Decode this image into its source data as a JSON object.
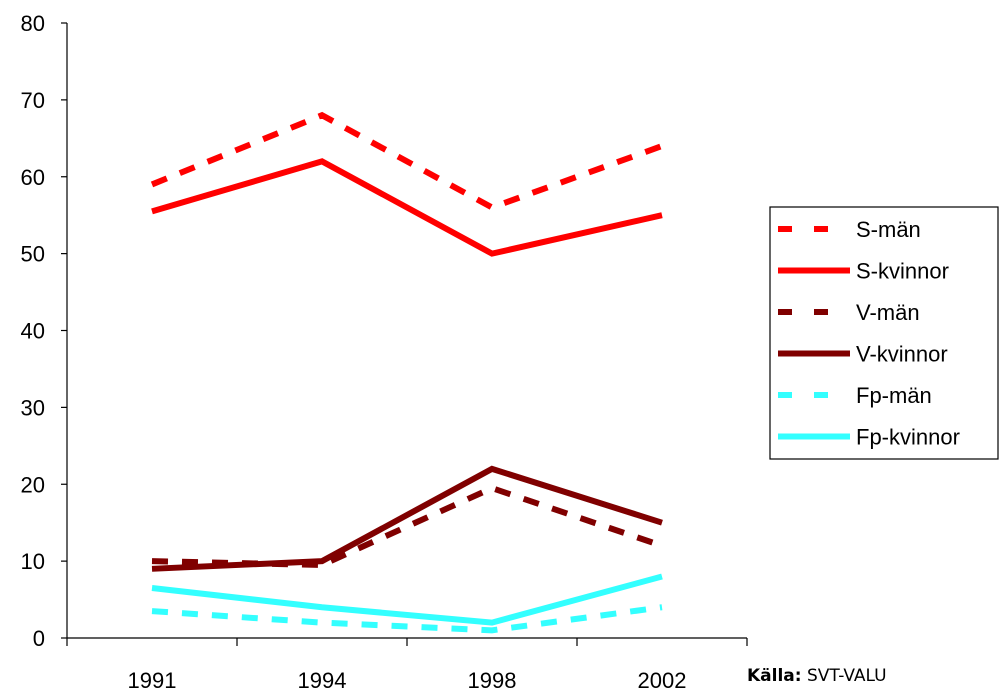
{
  "chart_data": {
    "type": "line",
    "categories": [
      "1991",
      "1994",
      "1998",
      "2002"
    ],
    "ylim": [
      0,
      80
    ],
    "yticks": [
      0,
      10,
      20,
      30,
      40,
      50,
      60,
      70,
      80
    ],
    "grid": false,
    "legend_position": "right",
    "series": [
      {
        "name": "S-män",
        "values": [
          59,
          68,
          56,
          64
        ],
        "color": "#ff0000",
        "dash": true
      },
      {
        "name": "S-kvinnor",
        "values": [
          55.5,
          62,
          50,
          55
        ],
        "color": "#ff0000",
        "dash": false
      },
      {
        "name": "V-män",
        "values": [
          10,
          9.5,
          19.5,
          12
        ],
        "color": "#800000",
        "dash": true
      },
      {
        "name": "V-kvinnor",
        "values": [
          9,
          10,
          22,
          15
        ],
        "color": "#800000",
        "dash": false
      },
      {
        "name": "Fp-män",
        "values": [
          3.5,
          2,
          1,
          4
        ],
        "color": "#33ffff",
        "dash": true
      },
      {
        "name": "Fp-kvinnor",
        "values": [
          6.5,
          4,
          2,
          8
        ],
        "color": "#33ffff",
        "dash": false
      }
    ]
  },
  "source": {
    "label": "Källa:",
    "text": " SVT-VALU"
  }
}
